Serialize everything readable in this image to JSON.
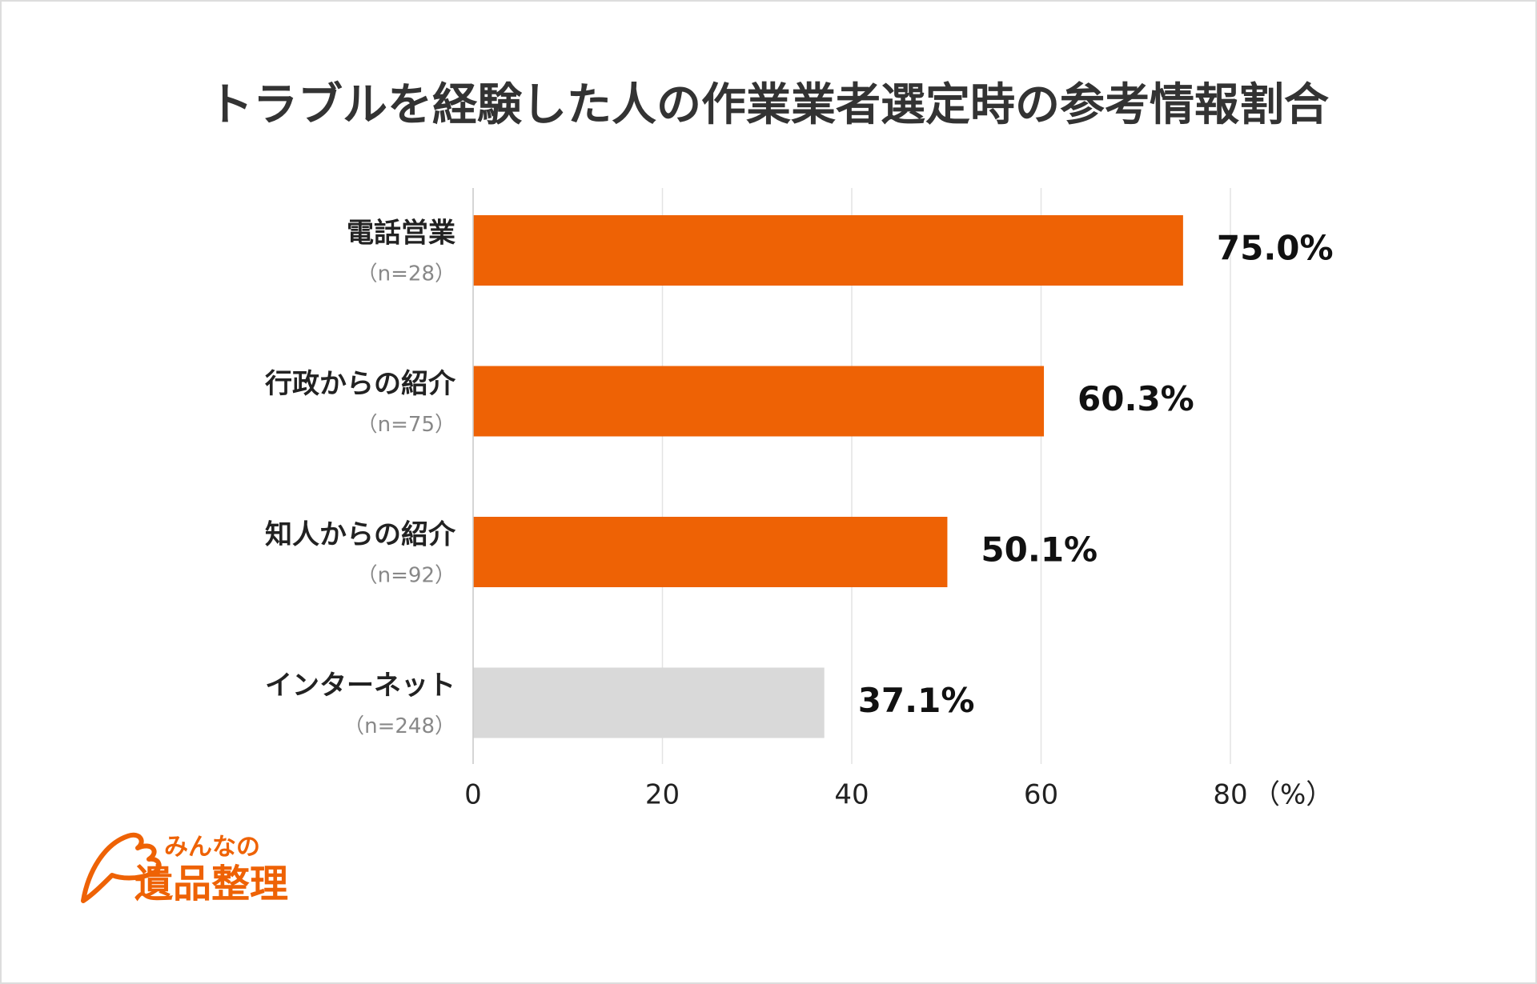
{
  "chart_data": {
    "type": "bar",
    "orientation": "horizontal",
    "title": "トラブルを経験した人の作業業者選定時の参考情報割合",
    "categories": [
      "電話営業",
      "行政からの紹介",
      "知人からの紹介",
      "インターネット"
    ],
    "category_notes": [
      "（n=28）",
      "（n=75）",
      "（n=92）",
      "（n=248）"
    ],
    "values": [
      75.0,
      60.3,
      50.1,
      37.1
    ],
    "value_labels": [
      "75.0%",
      "60.3%",
      "50.1%",
      "37.1%"
    ],
    "colors": [
      "#ee6205",
      "#ee6205",
      "#ee6205",
      "#d9d9d9"
    ],
    "xlim": [
      0,
      80
    ],
    "xticks": [
      0,
      20,
      40,
      60,
      80
    ],
    "x_unit": "（%）",
    "grid": true
  },
  "logo": {
    "line1": "みんなの",
    "line2": "遺品整理"
  }
}
